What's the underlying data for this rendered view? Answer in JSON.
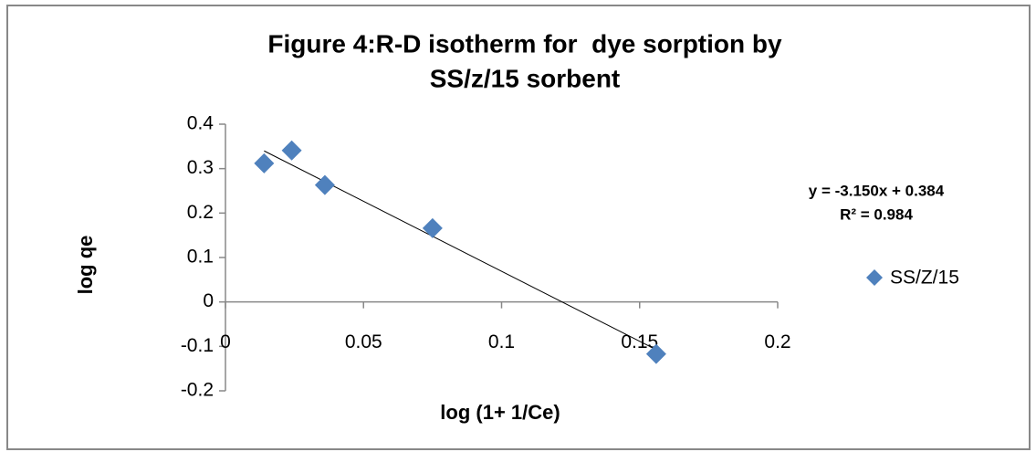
{
  "chart_data": {
    "type": "scatter",
    "title": [
      "Figure 4:R-D isotherm for  dye sorption by",
      "SS/z/15 sorbent"
    ],
    "x_label": "log (1+ 1/Ce)",
    "y_label": "log qe",
    "series": [
      {
        "name": "SS/Z/15",
        "color": "#4f81bd",
        "x": [
          0.014,
          0.024,
          0.036,
          0.075,
          0.156
        ],
        "values": [
          0.312,
          0.341,
          0.263,
          0.166,
          -0.117
        ]
      }
    ],
    "trendline": {
      "slope": -3.15,
      "intercept": 0.384,
      "equation": "y = -3.150x + 0.384",
      "r_squared": "R² = 0.984"
    },
    "xlim": [
      0,
      0.2
    ],
    "xticks": [
      0,
      0.05,
      0.1,
      0.15,
      0.2
    ],
    "ylim": [
      -0.2,
      0.4
    ],
    "yticks": [
      -0.2,
      -0.1,
      0,
      0.1,
      0.2,
      0.3,
      0.4
    ],
    "legend": "right"
  }
}
